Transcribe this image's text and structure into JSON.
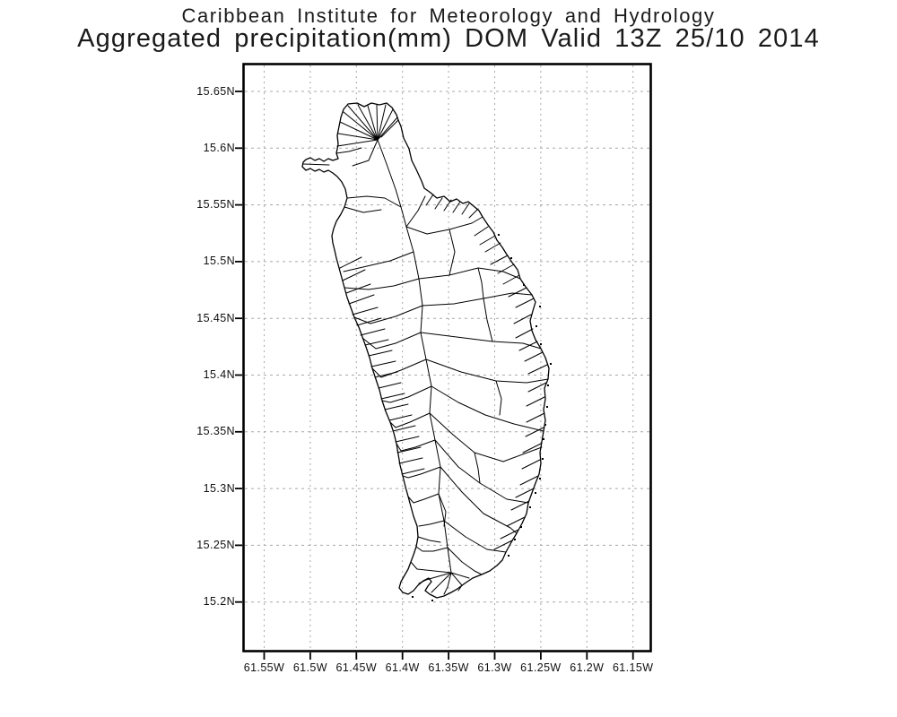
{
  "header": {
    "title_line1": "Caribbean Institute for Meteorology and Hydrology",
    "title_line2": "Aggregated precipitation(mm) DOM Valid 13Z 25/10 2014"
  },
  "axes": {
    "y_tick_labels": [
      "15.65N",
      "15.6N",
      "15.55N",
      "15.5N",
      "15.45N",
      "15.4N",
      "15.35N",
      "15.3N",
      "15.25N",
      "15.2N"
    ],
    "x_tick_labels": [
      "61.55W",
      "61.5W",
      "61.45W",
      "61.4W",
      "61.35W",
      "61.3W",
      "61.25W",
      "61.2W",
      "61.15W"
    ]
  },
  "map": {
    "region_label": "DOM",
    "content": "Dominica island outline with watershed boundary polygons",
    "lat_range": [
      "15.2N",
      "15.65N"
    ],
    "lon_range": [
      "61.55W",
      "61.15W"
    ]
  },
  "colors": {
    "background": "#ffffff",
    "frame": "#000000",
    "grid": "#a8a8a8",
    "coastline": "#000000",
    "text": "#111111"
  }
}
